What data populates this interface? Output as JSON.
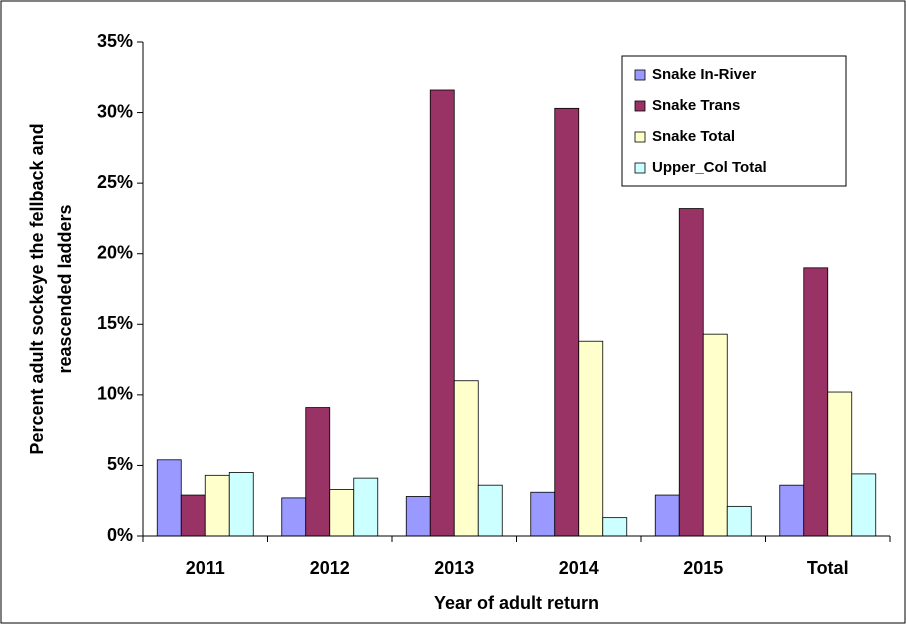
{
  "chart_data": {
    "type": "bar",
    "x_label": "Year of adult return",
    "y_label": [
      "Percent adult sockeye the fellback and",
      "reascended ladders"
    ],
    "categories": [
      "2011",
      "2012",
      "2013",
      "2014",
      "2015",
      "Total"
    ],
    "series": [
      {
        "name": "Snake In-River",
        "color": "#9999ff",
        "values": [
          5.4,
          2.7,
          2.8,
          3.1,
          2.9,
          3.6
        ]
      },
      {
        "name": "Snake Trans",
        "color": "#993366",
        "values": [
          2.9,
          9.1,
          31.6,
          30.3,
          23.2,
          19.0
        ]
      },
      {
        "name": "Snake Total",
        "color": "#ffffcc",
        "values": [
          4.3,
          3.3,
          11.0,
          13.8,
          14.3,
          10.2
        ]
      },
      {
        "name": "Upper_Col Total",
        "color": "#ccffff",
        "values": [
          4.5,
          4.1,
          3.6,
          1.3,
          2.1,
          4.4
        ]
      }
    ],
    "ylim": [
      0,
      35
    ],
    "yticks": [
      {
        "value": 0,
        "label": "0%"
      },
      {
        "value": 5,
        "label": "5%"
      },
      {
        "value": 10,
        "label": "10%"
      },
      {
        "value": 15,
        "label": "15%"
      },
      {
        "value": 20,
        "label": "20%"
      },
      {
        "value": 25,
        "label": "25%"
      },
      {
        "value": 30,
        "label": "30%"
      },
      {
        "value": 35,
        "label": "35%"
      }
    ],
    "grid": false,
    "legend": "top-right"
  }
}
